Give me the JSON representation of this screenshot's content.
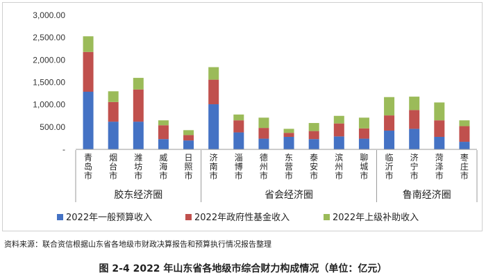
{
  "chart_data": {
    "type": "bar",
    "stacked": true,
    "categories": [
      "青岛市",
      "烟台市",
      "潍坊市",
      "威海市",
      "日照市",
      "济南市",
      "淄博市",
      "德州市",
      "东营市",
      "泰安市",
      "滨州市",
      "聊城市",
      "临沂市",
      "济宁市",
      "菏泽市",
      "枣庄市"
    ],
    "groups": [
      {
        "name": "胶东经济圈",
        "count": 5
      },
      {
        "name": "省会经济圈",
        "count": 7
      },
      {
        "name": "鲁南经济圈",
        "count": 4
      }
    ],
    "series": [
      {
        "name": "2022年一般预算收入",
        "color": "#4472C4",
        "values": [
          1290,
          620,
          620,
          230,
          200,
          1010,
          380,
          240,
          280,
          230,
          290,
          240,
          420,
          460,
          280,
          170
        ]
      },
      {
        "name": "2022年政府性基金收入",
        "color": "#C0504D",
        "values": [
          890,
          440,
          720,
          310,
          120,
          550,
          270,
          240,
          90,
          180,
          290,
          230,
          340,
          420,
          370,
          350
        ]
      },
      {
        "name": "2022年上级补助收入",
        "color": "#9BBB59",
        "values": [
          350,
          240,
          260,
          110,
          110,
          280,
          130,
          230,
          90,
          180,
          170,
          240,
          410,
          300,
          400,
          130
        ]
      }
    ],
    "ylim": [
      0,
      3000
    ],
    "yticks": [
      0,
      500,
      1000,
      1500,
      2000,
      2500,
      3000
    ],
    "ytick_labels": [
      "-",
      "500.00",
      "1,000.00",
      "1,500.00",
      "2,000.00",
      "2,500.00",
      "3,000.00"
    ],
    "legend_position": "bottom",
    "grid": false
  },
  "source_note": "资料来源：联合资信根据山东省各地级市财政决算报告和预算执行情况报告整理",
  "caption": "图 2-4   2022 年山东省各地级市综合财力构成情况（单位：亿元）"
}
